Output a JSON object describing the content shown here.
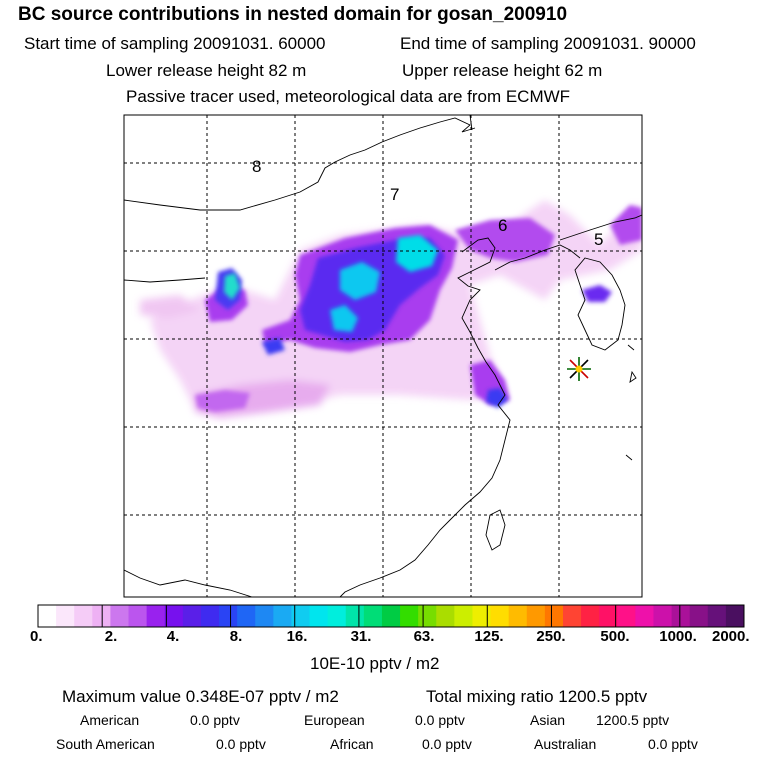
{
  "header": {
    "title": "BC  source contributions in nested domain for gosan_200910",
    "start_time": "Start time of sampling 20091031. 60000",
    "end_time": "End time of sampling 20091031. 90000",
    "lower_height": "Lower release height   82 m",
    "upper_height": "Upper release height   62 m",
    "tracer_info": "Passive tracer used, meteorological data are from ECMWF"
  },
  "map": {
    "region_labels": [
      "8",
      "7",
      "6",
      "5"
    ]
  },
  "colorbar": {
    "tick_labels": [
      "0.",
      "2.",
      "4.",
      "8.",
      "16.",
      "31.",
      "63.",
      "125.",
      "250.",
      "500.",
      "1000.",
      "2000."
    ],
    "colors": [
      "#ffffff",
      "#fbe7fb",
      "#f5ccf7",
      "#eeb1f4",
      "#cc77ee",
      "#bb55ee",
      "#9922ee",
      "#7711ee",
      "#5a1fe8",
      "#3f2bf0",
      "#2a44f4",
      "#1f66f5",
      "#1e88f3",
      "#1aaaf3",
      "#10ccf0",
      "#00e5ee",
      "#00eedd",
      "#00e5aa",
      "#00dd77",
      "#00cc44",
      "#33dd00",
      "#77dd00",
      "#aadd00",
      "#ccee00",
      "#eeee00",
      "#ffdd00",
      "#ffbb00",
      "#ff9900",
      "#ff7700",
      "#ff4433",
      "#ff2244",
      "#ff1166",
      "#ff1188",
      "#ee11aa",
      "#cc11aa",
      "#aa1199",
      "#881188",
      "#66117a",
      "#4a0f60"
    ],
    "units": "10E-10 pptv / m2"
  },
  "footer": {
    "max_value": "Maximum value  0.348E-07 pptv / m2",
    "total_mixing": "Total mixing ratio     1200.5 pptv",
    "american": "American",
    "american_val": "0.0 pptv",
    "european": "European",
    "european_val": "0.0 pptv",
    "asian": "Asian",
    "asian_val": "1200.5 pptv",
    "south_american": "South American",
    "south_american_val": "0.0 pptv",
    "african": "African",
    "african_val": "0.0 pptv",
    "australian": "Australian",
    "australian_val": "0.0 pptv"
  }
}
